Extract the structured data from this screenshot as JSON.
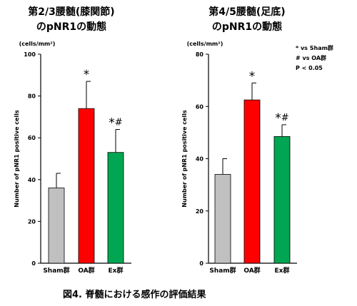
{
  "chart_data": [
    {
      "type": "bar",
      "title_lines": [
        "第2/3腰髄(膝関節)",
        "のpNR1の動態"
      ],
      "unit": "(cells/mm²)",
      "ylabel": "Number of pNR1 positive cells",
      "ylim": [
        0,
        100
      ],
      "yticks": [
        0,
        20,
        40,
        60,
        80,
        100
      ],
      "categories": [
        "Sham群",
        "OA群",
        "Ex群"
      ],
      "values": [
        36,
        74,
        53
      ],
      "errors": [
        7,
        13,
        11
      ],
      "colors": [
        "#c0c0c0",
        "#ff0000",
        "#00a651"
      ],
      "annotations": [
        "",
        "*",
        "*#"
      ]
    },
    {
      "type": "bar",
      "title_lines": [
        "第4/5腰髄(足底)",
        "のpNR1の動態"
      ],
      "unit": "(cells/mm²)",
      "ylabel": "Number of pNR1 positive cells",
      "ylim": [
        0,
        80
      ],
      "yticks": [
        0,
        20,
        40,
        60,
        80
      ],
      "categories": [
        "Sham群",
        "OA群",
        "Ex群"
      ],
      "values": [
        34,
        62.5,
        48.5
      ],
      "errors": [
        6,
        6.5,
        4.5
      ],
      "colors": [
        "#c0c0c0",
        "#ff0000",
        "#00a651"
      ],
      "annotations": [
        "",
        "*",
        "*#"
      ]
    }
  ],
  "legend": [
    "*  vs Sham群",
    "#  vs OA群",
    "P  <  0.05"
  ],
  "caption": "図4. 脊髄における感作の評価結果"
}
